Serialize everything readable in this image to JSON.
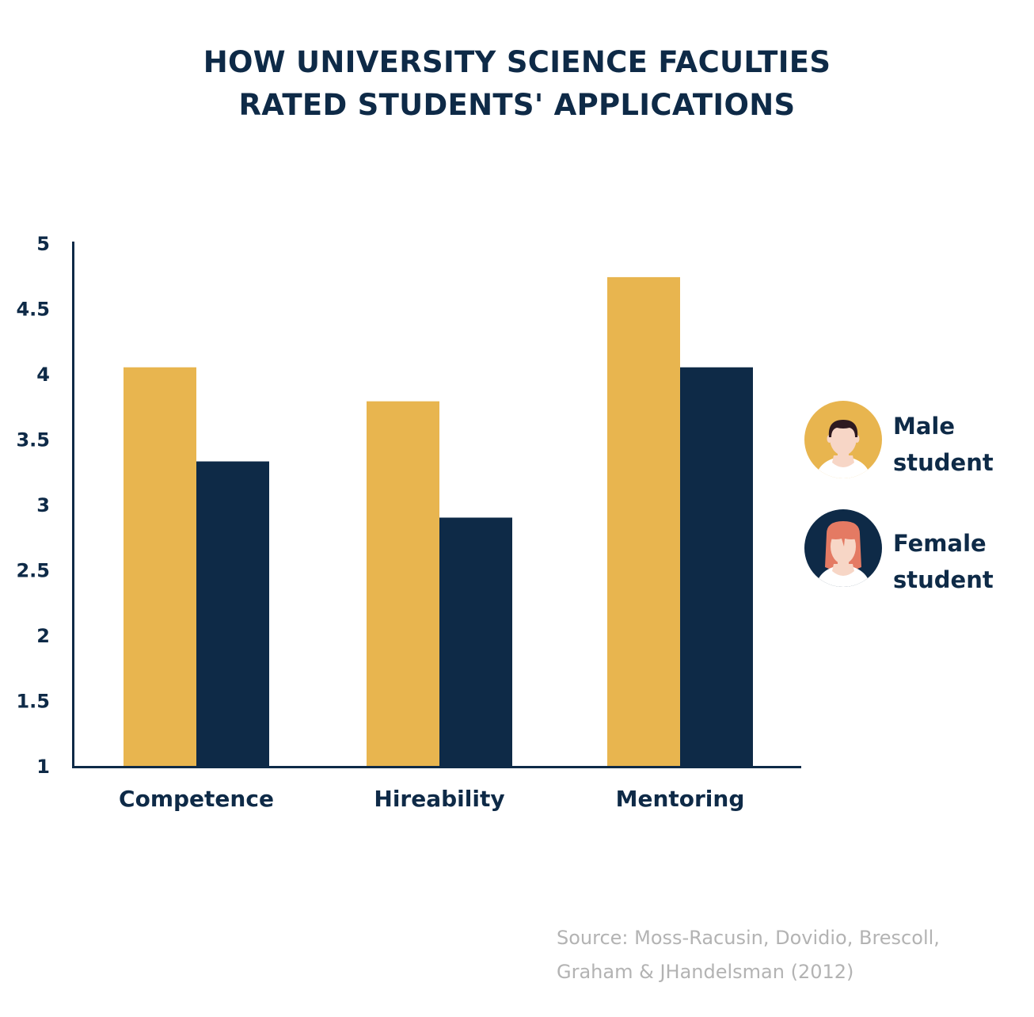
{
  "title_lines": [
    "HOW UNIVERSITY SCIENCE FACULTIES",
    "RATED STUDENTS' APPLICATIONS"
  ],
  "colors": {
    "male": "#e8b54f",
    "female": "#0e2a47",
    "text": "#0e2a47",
    "source": "#b3b3b3"
  },
  "legend": [
    {
      "series": "male",
      "line1": "Male",
      "line2": "student",
      "icon": "male-avatar-icon"
    },
    {
      "series": "female",
      "line1": "Female",
      "line2": "student",
      "icon": "female-avatar-icon"
    }
  ],
  "source": {
    "line1": "Source: Moss-Racusin, Dovidio, Brescoll,",
    "line2": "Graham & JHandelsman (2012)"
  },
  "chart_data": {
    "type": "bar",
    "title": "HOW UNIVERSITY SCIENCE FACULTIES RATED STUDENTS' APPLICATIONS",
    "xlabel": "",
    "ylabel": "",
    "categories": [
      "Competence",
      "Hireability",
      "Mentoring"
    ],
    "series": [
      {
        "name": "Male student",
        "key": "male",
        "values": [
          4.05,
          3.79,
          4.74
        ]
      },
      {
        "name": "Female student",
        "key": "female",
        "values": [
          3.33,
          2.9,
          4.05
        ]
      }
    ],
    "ylim": [
      1,
      5
    ],
    "yticks": [
      "1",
      "1.5",
      "2",
      "2.5",
      "3",
      "3.5",
      "4",
      "4.5",
      "5"
    ],
    "grid": false,
    "legend_position": "right"
  }
}
